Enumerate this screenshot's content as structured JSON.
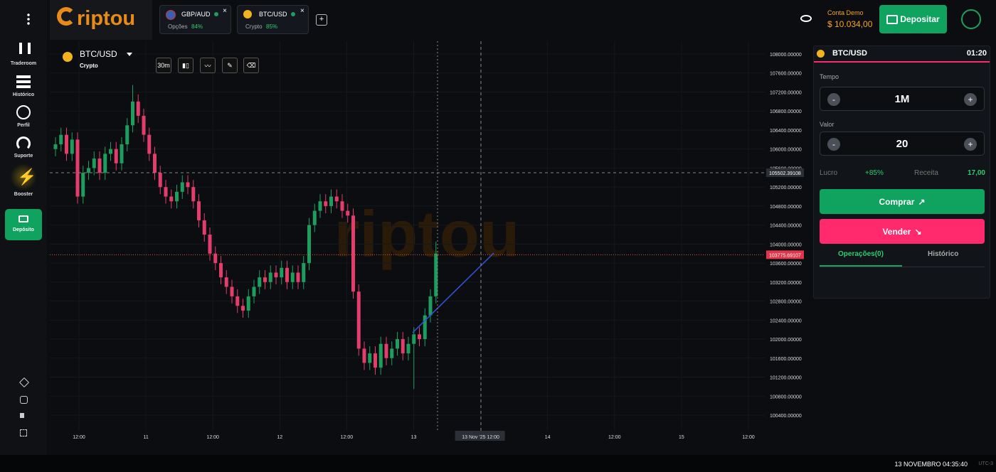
{
  "sidebar": {
    "items": [
      "Traderoom",
      "Histórico",
      "Perfil",
      "Suporte",
      "Booster",
      "Depósito"
    ]
  },
  "header": {
    "logo": "riptou",
    "tabs": [
      {
        "pair": "GBP/AUD",
        "kind": "Opções",
        "payout": "84%"
      },
      {
        "pair": "BTC/USD",
        "kind": "Crypto",
        "payout": "85%"
      }
    ],
    "account_label": "Conta Demo",
    "balance": "$ 10.034,00",
    "deposit_button": "Depositar"
  },
  "chart_data": {
    "type": "candlestick",
    "title": "BTC/USD",
    "subtitle": "Crypto",
    "interval": "30m",
    "watermark": "riptou",
    "up_color": "#1e9e5e",
    "down_color": "#e23d6b",
    "ylim": [
      108000,
      100400
    ],
    "yticks": [
      {
        "value": 108000,
        "label": "108000.00000"
      },
      {
        "value": 107600,
        "label": "107600.00000"
      },
      {
        "value": 107200,
        "label": "107200.00000"
      },
      {
        "value": 106800,
        "label": "106800.00000"
      },
      {
        "value": 106400,
        "label": "106400.00000"
      },
      {
        "value": 106000,
        "label": "106000.00000"
      },
      {
        "value": 105600,
        "label": "105600.00000"
      },
      {
        "value": 105200,
        "label": "105200.00000"
      },
      {
        "value": 104800,
        "label": "104800.00000"
      },
      {
        "value": 104400,
        "label": "104400.00000"
      },
      {
        "value": 104000,
        "label": "104000.00000"
      },
      {
        "value": 103600,
        "label": "103600.00000"
      },
      {
        "value": 103200,
        "label": "103200.00000"
      },
      {
        "value": 102800,
        "label": "102800.00000"
      },
      {
        "value": 102400,
        "label": "102400.00000"
      },
      {
        "value": 102000,
        "label": "102000.00000"
      },
      {
        "value": 101600,
        "label": "101600.00000"
      },
      {
        "value": 101200,
        "label": "101200.00000"
      },
      {
        "value": 100800,
        "label": "100800.00000"
      },
      {
        "value": 100400,
        "label": "100400.00000"
      }
    ],
    "x_labels": [
      "12:00",
      "11",
      "12:00",
      "12",
      "12:00",
      "13",
      "13 Nov '25   12:00",
      "14",
      "12:00",
      "15",
      "12:00"
    ],
    "crosshair_price": 105502.39108,
    "current_price": 103775.69107,
    "open": [
      106000,
      106100,
      106300,
      105900,
      106200,
      105000,
      105500,
      105600,
      105800,
      105500,
      105900,
      106000,
      105700,
      106100,
      106500,
      107000,
      106700,
      106300,
      105900,
      105500,
      105200,
      105000,
      104900,
      105100,
      105300,
      105200,
      104900,
      104500,
      104200,
      103800,
      103600,
      103300,
      103100,
      102900,
      102700,
      102600,
      102900,
      103100,
      103300,
      103200,
      103400,
      103300,
      103500,
      103200,
      103400,
      103200,
      103600,
      104400,
      104700,
      104900,
      104800,
      105000,
      104900,
      104700,
      104600,
      103000,
      101800,
      101500,
      101700,
      101400,
      101900,
      101600,
      101800,
      102000,
      101700,
      101900,
      102100,
      102000,
      102500,
      102900
    ],
    "high": [
      106250,
      106450,
      106450,
      106350,
      106350,
      105650,
      105750,
      105950,
      105950,
      106050,
      106150,
      106150,
      106250,
      106650,
      107350,
      107150,
      106850,
      106450,
      106050,
      105650,
      105350,
      105150,
      105250,
      105450,
      105450,
      105350,
      105050,
      104650,
      104350,
      103950,
      103750,
      103450,
      103250,
      103050,
      102850,
      103050,
      103250,
      103450,
      103450,
      103550,
      103550,
      103650,
      103650,
      103550,
      103550,
      103750,
      104550,
      104850,
      105050,
      105050,
      105150,
      105150,
      105050,
      104850,
      104750,
      103150,
      101950,
      101850,
      101850,
      102050,
      102050,
      101950,
      102150,
      102150,
      102050,
      102250,
      102250,
      102650,
      103050,
      104050
    ],
    "low": [
      105850,
      105950,
      105750,
      105750,
      104850,
      104850,
      105350,
      105450,
      105350,
      105350,
      105750,
      105550,
      105550,
      105950,
      106350,
      106550,
      106150,
      105750,
      105350,
      105050,
      104850,
      104750,
      104750,
      104950,
      105050,
      104750,
      104350,
      104050,
      103650,
      103450,
      103150,
      102950,
      102750,
      102550,
      102450,
      102450,
      102750,
      102950,
      103050,
      103050,
      103150,
      103150,
      103050,
      103050,
      103050,
      103050,
      103450,
      104250,
      104550,
      104650,
      104650,
      104750,
      104550,
      104450,
      102850,
      101650,
      101350,
      101350,
      101250,
      101250,
      101450,
      101450,
      101650,
      101550,
      101550,
      100950,
      101850,
      101850,
      102350,
      102750
    ],
    "close": [
      106100,
      106300,
      105900,
      106200,
      105000,
      105500,
      105600,
      105800,
      105500,
      105900,
      106000,
      105700,
      106100,
      106500,
      107000,
      106700,
      106300,
      105900,
      105500,
      105200,
      105000,
      104900,
      105100,
      105300,
      105200,
      104900,
      104500,
      104200,
      103800,
      103600,
      103300,
      103100,
      102900,
      102700,
      102600,
      102900,
      103100,
      103300,
      103200,
      103400,
      103300,
      103500,
      103200,
      103400,
      103200,
      103600,
      104400,
      104700,
      104900,
      104800,
      105000,
      104900,
      104700,
      104600,
      103000,
      101800,
      101500,
      101700,
      101400,
      101900,
      101600,
      101800,
      102000,
      101700,
      101900,
      102100,
      102000,
      102500,
      102900,
      103800
    ]
  },
  "trade_panel": {
    "pair": "BTC/USD",
    "timer": "01:20",
    "time_label": "Tempo",
    "time_value": "1M",
    "amount_label": "Valor",
    "amount_value": "20",
    "profit_label": "Lucro",
    "profit_value": "+85%",
    "revenue_label": "Receita",
    "revenue_value": "17,00",
    "buy_button": "Comprar",
    "sell_button": "Vender",
    "tab_operations": "Operações(0)",
    "tab_history": "Histórico",
    "minus": "-",
    "plus": "+"
  },
  "footer": {
    "datetime": "13 NOVEMBRO 04:35:40",
    "timezone": "UTC-3"
  }
}
